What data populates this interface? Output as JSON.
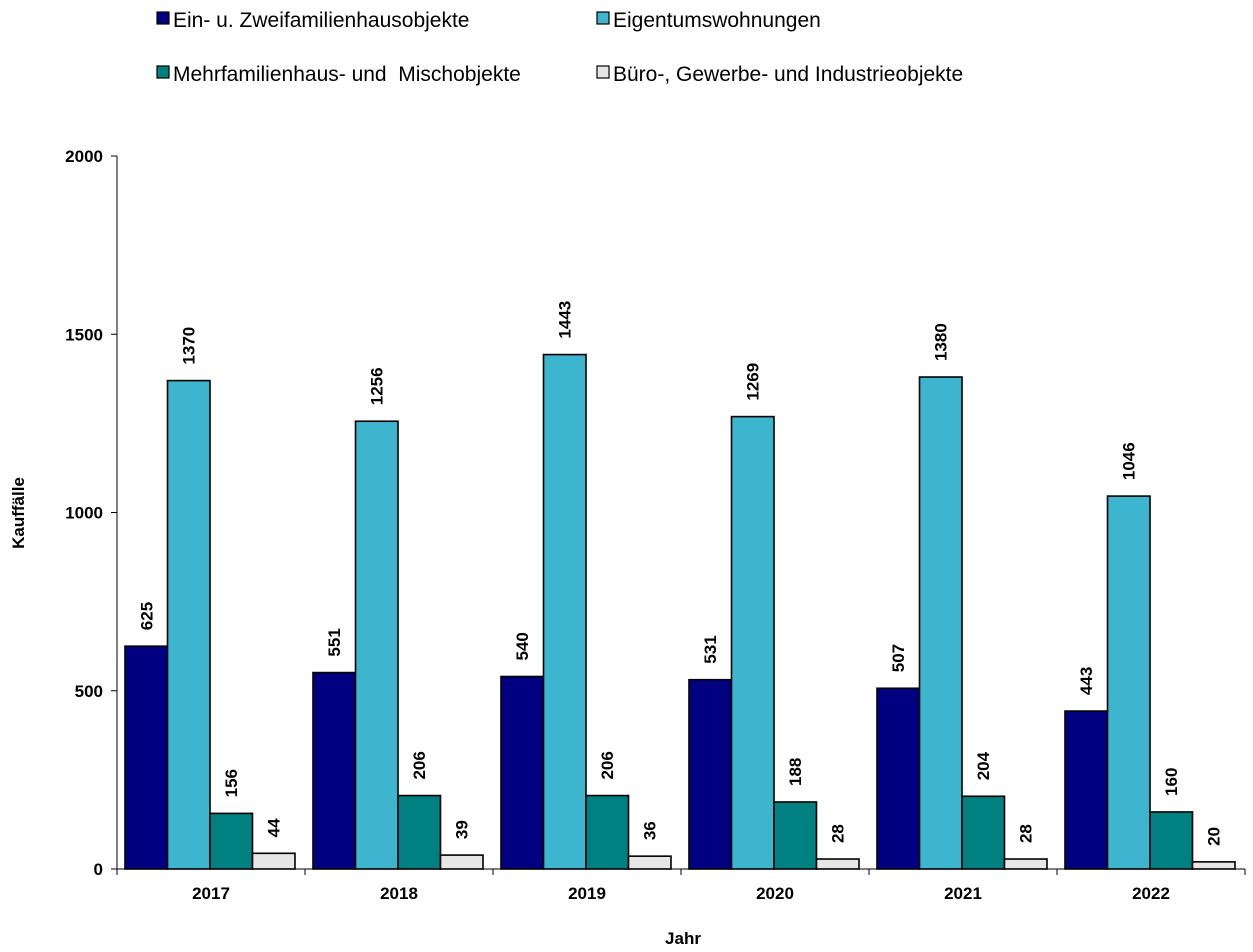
{
  "chart_data": {
    "type": "bar",
    "categories": [
      "2017",
      "2018",
      "2019",
      "2020",
      "2021",
      "2022"
    ],
    "series": [
      {
        "name": "Ein- u. Zweifamilienhausobjekte",
        "color": "#000080",
        "values": [
          625,
          551,
          540,
          531,
          507,
          443
        ]
      },
      {
        "name": "Eigentumswohnungen",
        "color": "#3DB5CE",
        "values": [
          1370,
          1256,
          1443,
          1269,
          1380,
          1046
        ]
      },
      {
        "name": "Mehrfamilienhaus- und  Mischobjekte",
        "color": "#008080",
        "values": [
          156,
          206,
          206,
          188,
          204,
          160
        ]
      },
      {
        "name": "Büro-, Gewerbe- und Industrieobjekte",
        "color": "#E6E6E6",
        "values": [
          44,
          39,
          36,
          28,
          28,
          20
        ]
      }
    ],
    "xlabel": "Jahr",
    "ylabel": "Kauffälle",
    "ylim": [
      0,
      2000
    ],
    "yticks": [
      0,
      500,
      1000,
      1500,
      2000
    ],
    "grid": false,
    "legend_position": "top",
    "data_labels": true
  }
}
